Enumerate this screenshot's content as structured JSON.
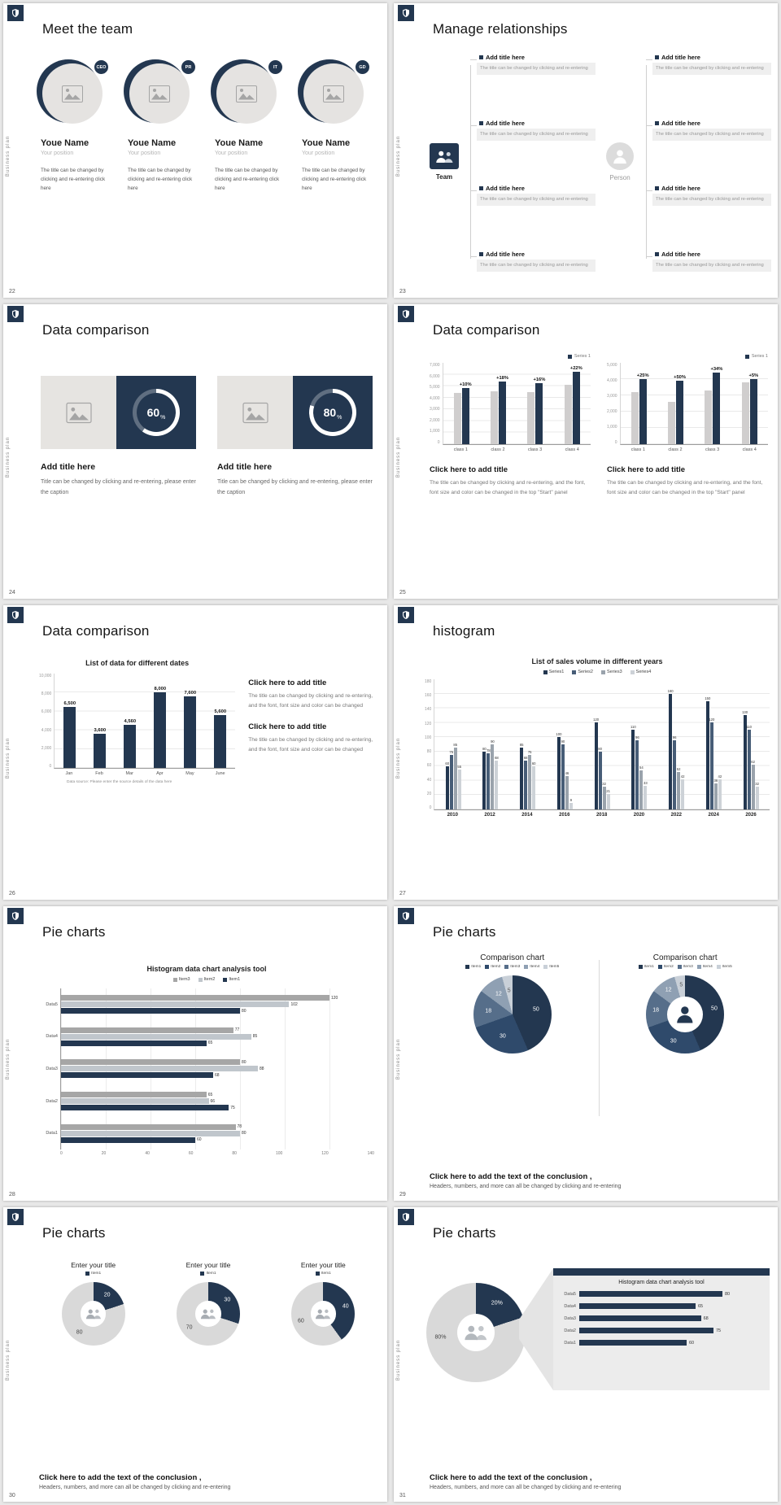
{
  "common": {
    "side_label": "Business plan",
    "conclusion_title": "Click here to add the text of the conclusion ,",
    "conclusion_body": "Headers, numbers, and more can all be changed by clicking and re-entering"
  },
  "colors": {
    "navy": "#233750",
    "slate": "#475d77",
    "gray_bar": "#d0cece",
    "gray_mid": "#a6a6a6",
    "gray_light": "#c0c6cc",
    "donut_gray": "#d9d9d9",
    "pie_palette": [
      "#233750",
      "#2f4a6b",
      "#566e8a",
      "#8fa0b3",
      "#c9d0d8"
    ]
  },
  "slides": {
    "s22": {
      "page": "22",
      "title": "Meet the team",
      "members": [
        {
          "badge": "CEO",
          "name": "Youe Name",
          "position": "Your position",
          "body": "The title can be changed by clicking and re-entering click here"
        },
        {
          "badge": "PR",
          "name": "Youe Name",
          "position": "Your position",
          "body": "The title can be changed by clicking and re-entering click here"
        },
        {
          "badge": "IT",
          "name": "Youe Name",
          "position": "Your position",
          "body": "The title can be changed by clicking and re-entering click here"
        },
        {
          "badge": "GD",
          "name": "Youe Name",
          "position": "Your position",
          "body": "The title can be changed by clicking and re-entering click here"
        }
      ]
    },
    "s23": {
      "page": "23",
      "title": "Manage relationships",
      "left_label": "Team",
      "right_label": "Person",
      "left_boxes": [
        {
          "title": "Add title here",
          "body": "The title can be changed by clicking and re-entering"
        },
        {
          "title": "Add title here",
          "body": "The title can be changed by clicking and re-entering"
        },
        {
          "title": "Add title here",
          "body": "The title can be changed by clicking and re-entering"
        },
        {
          "title": "Add title here",
          "body": "The title can be changed by clicking and re-entering"
        }
      ],
      "right_boxes": [
        {
          "title": "Add title here",
          "body": "The title can be changed by clicking and re-entering"
        },
        {
          "title": "Add title here",
          "body": "The title can be changed by clicking and re-entering"
        },
        {
          "title": "Add title here",
          "body": "The title can be changed by clicking and re-entering"
        },
        {
          "title": "Add title here",
          "body": "The title can be changed by clicking and re-entering"
        }
      ]
    },
    "s24": {
      "page": "24",
      "title": "Data comparison",
      "cards": [
        {
          "percent": 60,
          "percent_label": "60",
          "unit": "%",
          "title": "Add title here",
          "body": "Title can be changed by clicking and re-entering, please enter the caption"
        },
        {
          "percent": 80,
          "percent_label": "80",
          "unit": "%",
          "title": "Add title here",
          "body": "Title can be changed by clicking and re-entering, please enter the caption"
        }
      ]
    },
    "s25": {
      "page": "25",
      "title": "Data comparison",
      "charts": [
        {
          "type": "bar",
          "legend": "Series 1",
          "max": 7000,
          "yticks": [
            "7,000",
            "6,000",
            "5,000",
            "4,000",
            "3,000",
            "2,000",
            "1,000",
            "0"
          ],
          "categories": [
            "class 1",
            "class 2",
            "class 3",
            "class 4"
          ],
          "series": [
            {
              "name": "previous",
              "color": "#d0cece",
              "values": [
                4400,
                4550,
                4500,
                5080
              ]
            },
            {
              "name": "Series 1",
              "color": "#233750",
              "values": [
                4840,
                5370,
                5220,
                6200
              ],
              "labels": [
                "+10%",
                "+18%",
                "+16%",
                "+22%"
              ]
            }
          ],
          "caption_title": "Click here to add title",
          "caption_body": "The title can be changed by clicking and re-entering, and the font, font size and color can be changed in the top \"Start\" panel"
        },
        {
          "type": "bar",
          "legend": "Series 1",
          "max": 5000,
          "yticks": [
            "5,000",
            "4,000",
            "3,000",
            "2,000",
            "1,000",
            "0"
          ],
          "categories": [
            "class 1",
            "class 2",
            "class 3",
            "class 4"
          ],
          "series": [
            {
              "name": "previous",
              "color": "#d0cece",
              "values": [
                3200,
                2600,
                3280,
                3800
              ]
            },
            {
              "name": "Series 1",
              "color": "#233750",
              "values": [
                4000,
                3900,
                4400,
                3990
              ],
              "labels": [
                "+25%",
                "+50%",
                "+34%",
                "+5%"
              ]
            }
          ],
          "caption_title": "Click here to add title",
          "caption_body": "The title can be changed by clicking and re-entering, and the font, font size and color can be changed in the top \"Start\" panel"
        }
      ]
    },
    "s26": {
      "page": "26",
      "title": "Data comparison",
      "chart": {
        "type": "bar",
        "title": "List of data for different dates",
        "max": 10000,
        "yticks": [
          "10,000",
          "8,000",
          "6,000",
          "4,000",
          "2,000",
          "0"
        ],
        "categories": [
          "Jan",
          "Feb",
          "Mar",
          "Apr",
          "May",
          "June"
        ],
        "series": [
          {
            "name": "data",
            "color": "#233750",
            "values": [
              6500,
              3600,
              4560,
              8000,
              7600,
              5600
            ],
            "labels": [
              "6,500",
              "3,600",
              "4,560",
              "8,000",
              "7,600",
              "5,600"
            ]
          }
        ],
        "footnote": "Data source: Please enter the source details of the data here"
      },
      "blocks": [
        {
          "title": "Click here to add title",
          "body": "The title can be changed by clicking and re-entering, and the font, font size and color can be changed"
        },
        {
          "title": "Click here to add title",
          "body": "The title can be changed by clicking and re-entering, and the font, font size and color can be changed"
        }
      ]
    },
    "s27": {
      "page": "27",
      "title": "histogram",
      "chart": {
        "type": "bar",
        "title": "List of sales volume in different years",
        "max": 180,
        "show_values": true,
        "yticks": [
          "180",
          "160",
          "140",
          "120",
          "100",
          "80",
          "60",
          "40",
          "20",
          "0"
        ],
        "categories": [
          "2010",
          "2012",
          "2014",
          "2016",
          "2018",
          "2020",
          "2022",
          "2024",
          "2026"
        ],
        "series": [
          {
            "name": "Series1",
            "color": "#233750",
            "values": [
              60,
              80,
              85,
              100,
              120,
              110,
              160,
              150,
              130
            ]
          },
          {
            "name": "Series2",
            "color": "#475d77",
            "values": [
              75,
              78,
              68,
              90,
              80,
              96,
              96,
              120,
              110
            ]
          },
          {
            "name": "Series3",
            "color": "#9aa3ac",
            "values": [
              85,
              90,
              75,
              46,
              32,
              54,
              52,
              36,
              62
            ]
          },
          {
            "name": "Series4",
            "color": "#cdd2d7",
            "values": [
              55,
              68,
              60,
              9,
              21,
              33,
              42,
              42,
              32
            ]
          }
        ]
      }
    },
    "s28": {
      "page": "28",
      "title": "Pie charts",
      "chart": {
        "type": "bar-horizontal",
        "title": "Histogram data chart analysis tool",
        "max": 140,
        "xticks": [
          "0",
          "20",
          "40",
          "60",
          "80",
          "100",
          "120",
          "140"
        ],
        "categories": [
          "Data1",
          "Data2",
          "Data3",
          "Data4",
          "Data5"
        ],
        "series": [
          {
            "name": "Item3",
            "color": "#a6a6a6",
            "values": [
              78,
              65,
              80,
              77,
              120
            ]
          },
          {
            "name": "Item2",
            "color": "#c0c6cc",
            "values": [
              80,
              66,
              88,
              85,
              102
            ]
          },
          {
            "name": "Item1",
            "color": "#233750",
            "values": [
              60,
              75,
              68,
              65,
              80
            ]
          }
        ]
      }
    },
    "s29": {
      "page": "29",
      "title": "Pie charts",
      "charts": [
        {
          "type": "pie",
          "title": "Comparison chart",
          "legend": [
            "Item1",
            "Item2",
            "Item3",
            "Item4",
            "Item5"
          ],
          "values": [
            50,
            30,
            18,
            12,
            5
          ]
        },
        {
          "type": "doughnut",
          "title": "Comparison chart",
          "legend": [
            "Item1",
            "Item2",
            "Item3",
            "Item4",
            "Item5"
          ],
          "values": [
            50,
            30,
            18,
            12,
            5
          ]
        }
      ]
    },
    "s30": {
      "page": "30",
      "title": "Pie charts",
      "charts": [
        {
          "type": "doughnut",
          "title": "Enter your title",
          "legend": [
            "Item1"
          ],
          "values": [
            20,
            80
          ]
        },
        {
          "type": "doughnut",
          "title": "Enter your title",
          "legend": [
            "Item1"
          ],
          "values": [
            30,
            70
          ]
        },
        {
          "type": "doughnut",
          "title": "Enter your title",
          "legend": [
            "Item1"
          ],
          "values": [
            40,
            60
          ]
        }
      ]
    },
    "s31": {
      "page": "31",
      "title": "Pie charts",
      "donut": {
        "type": "doughnut",
        "values": [
          20,
          80
        ],
        "labels": [
          "20%",
          "80%"
        ]
      },
      "panel": {
        "title": "Histogram data chart analysis tool",
        "max": 100,
        "categories": [
          "Data5",
          "Data4",
          "Data3",
          "Data2",
          "Data1"
        ],
        "values": [
          80,
          65,
          68,
          75,
          60
        ]
      }
    }
  }
}
